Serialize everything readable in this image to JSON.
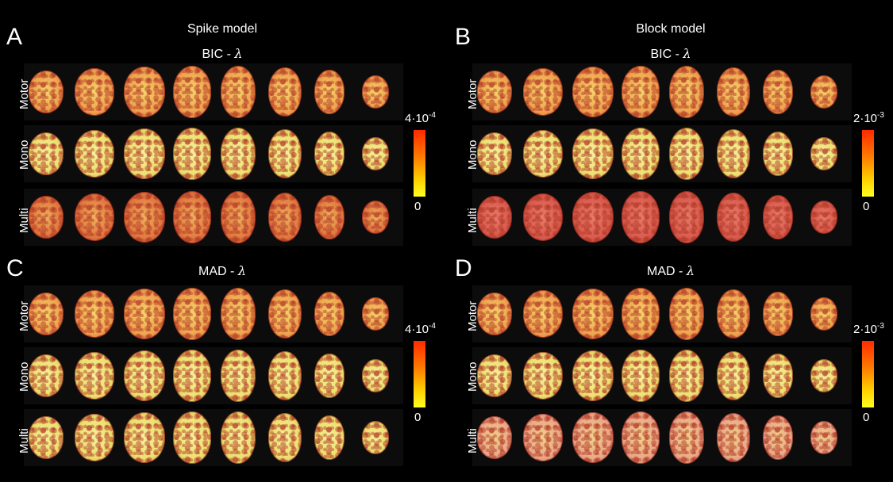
{
  "panels": [
    {
      "letter": "A",
      "model_title": "Spike model",
      "metric": "BIC - ",
      "lambda": "λ",
      "cb_base": "4·10",
      "cb_exp": "-4",
      "cb_min": "0"
    },
    {
      "letter": "B",
      "model_title": "Block model",
      "metric": "BIC - ",
      "lambda": "λ",
      "cb_base": "2·10",
      "cb_exp": "-3",
      "cb_min": "0"
    },
    {
      "letter": "C",
      "model_title": "",
      "metric": "MAD - ",
      "lambda": "λ",
      "cb_base": "4·10",
      "cb_exp": "-4",
      "cb_min": "0"
    },
    {
      "letter": "D",
      "model_title": "",
      "metric": "MAD - ",
      "lambda": "λ",
      "cb_base": "2·10",
      "cb_exp": "-3",
      "cb_min": "0"
    }
  ],
  "row_labels": [
    "Motor",
    "Mono",
    "Multi"
  ],
  "colormap": {
    "max_color": "#ff2a00",
    "mid_color": "#ff9a00",
    "min_color": "#ffff20"
  }
}
